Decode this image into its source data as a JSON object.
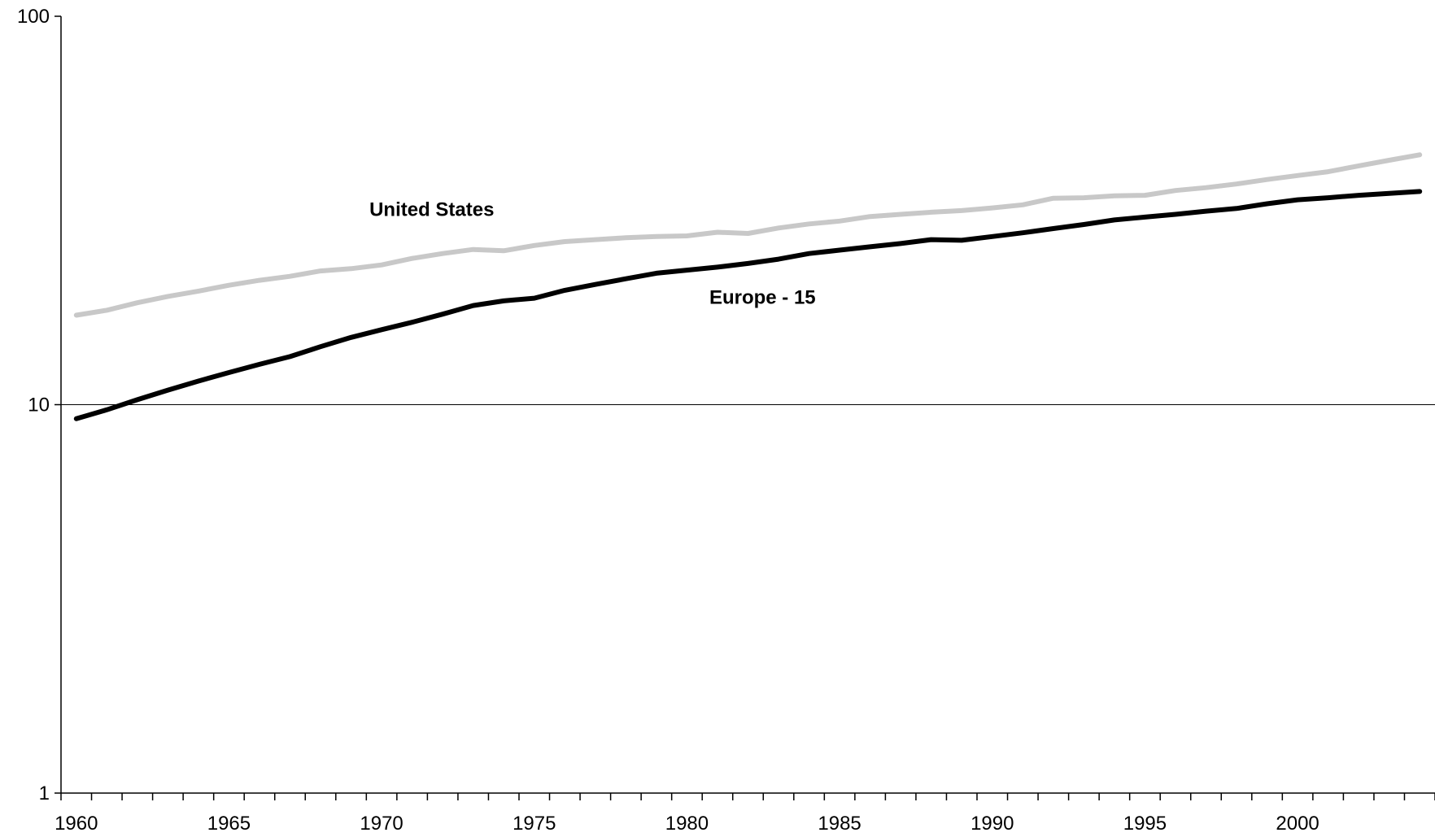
{
  "chart_data": {
    "type": "line",
    "title": "",
    "xlabel": "",
    "ylabel": "",
    "y_scale": "log",
    "ylim": [
      1,
      100
    ],
    "xlim": [
      1959.5,
      2004.5
    ],
    "y_ticks": [
      1,
      10,
      100
    ],
    "y_tick_labels": [
      "1",
      "10",
      "100"
    ],
    "x_ticks": [
      1960,
      1965,
      1970,
      1975,
      1980,
      1985,
      1990,
      1995,
      2000
    ],
    "x_tick_labels": [
      "1960",
      "1965",
      "1970",
      "1975",
      "1980",
      "1985",
      "1990",
      "1995",
      "2000"
    ],
    "grid": "major y gridline at 10",
    "x": [
      1960,
      1961,
      1962,
      1963,
      1964,
      1965,
      1966,
      1967,
      1968,
      1969,
      1970,
      1971,
      1972,
      1973,
      1974,
      1975,
      1976,
      1977,
      1978,
      1979,
      1980,
      1981,
      1982,
      1983,
      1984,
      1985,
      1986,
      1987,
      1988,
      1989,
      1990,
      1991,
      1992,
      1993,
      1994,
      1995,
      1996,
      1997,
      1998,
      1999,
      2000,
      2001,
      2002,
      2003,
      2004
    ],
    "series": [
      {
        "name": "United States",
        "color": "#c8c8c8",
        "values": [
          17.0,
          17.5,
          18.3,
          19.0,
          19.6,
          20.3,
          20.9,
          21.4,
          22.1,
          22.4,
          22.9,
          23.8,
          24.5,
          25.1,
          24.9,
          25.7,
          26.3,
          26.6,
          26.9,
          27.1,
          27.2,
          27.8,
          27.6,
          28.5,
          29.2,
          29.7,
          30.5,
          30.9,
          31.3,
          31.6,
          32.1,
          32.7,
          34.0,
          34.1,
          34.5,
          34.6,
          35.6,
          36.2,
          37.0,
          38.0,
          38.9,
          39.8,
          41.2,
          42.6,
          44.0
        ]
      },
      {
        "name": "Europe - 15",
        "color": "#000000",
        "values": [
          9.2,
          9.7,
          10.3,
          10.9,
          11.5,
          12.1,
          12.7,
          13.3,
          14.1,
          14.9,
          15.6,
          16.3,
          17.1,
          18.0,
          18.5,
          18.8,
          19.7,
          20.4,
          21.1,
          21.8,
          22.2,
          22.6,
          23.1,
          23.7,
          24.5,
          25.0,
          25.5,
          26.0,
          26.6,
          26.5,
          27.1,
          27.7,
          28.4,
          29.1,
          29.9,
          30.4,
          30.9,
          31.5,
          32.0,
          32.9,
          33.7,
          34.1,
          34.6,
          35.0,
          35.4
        ]
      }
    ],
    "annotations": [
      {
        "text": "United States",
        "series": "United States"
      },
      {
        "text": "Europe - 15",
        "series": "Europe - 15"
      }
    ]
  }
}
